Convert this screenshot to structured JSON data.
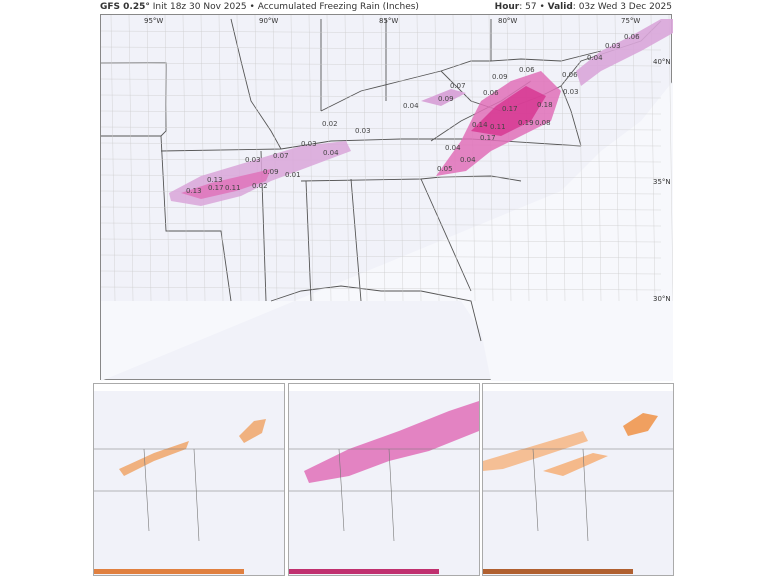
{
  "header": {
    "model": "GFS 0.25°",
    "init": "Init 18z 30 Nov 2025",
    "product": "Accumulated Freezing Rain (Inches)",
    "hour_label": "Hour",
    "hour": "57",
    "valid_label": "Valid",
    "valid": "03z Wed 3 Dec 2025"
  },
  "axes": {
    "lon": [
      "95°W",
      "90°W",
      "85°W",
      "80°W",
      "75°W"
    ],
    "lat": [
      "40°N",
      "35°N",
      "30°N"
    ]
  },
  "colors": {
    "freezing_rain_light": "#d9a6d9",
    "freezing_rain_mid": "#e070b8",
    "freezing_rain_heavy": "#d6338f",
    "snow_light": "#f5b98a",
    "snow_mid": "#f0a060"
  },
  "values": [
    "0.13",
    "0.17",
    "0.13",
    "0.11",
    "0.02",
    "0.09",
    "0.01",
    "0.03",
    "0.07",
    "0.03",
    "0.04",
    "0.02",
    "0.03",
    "0.04",
    "0.07",
    "0.09",
    "0.09",
    "0.06",
    "0.06",
    "0.06",
    "0.03",
    "0.17",
    "0.18",
    "0.14",
    "0.11",
    "0.19",
    "0.08",
    "0.17",
    "0.04",
    "0.04",
    "0.05",
    "0.04",
    "0.03",
    "0.06"
  ]
}
